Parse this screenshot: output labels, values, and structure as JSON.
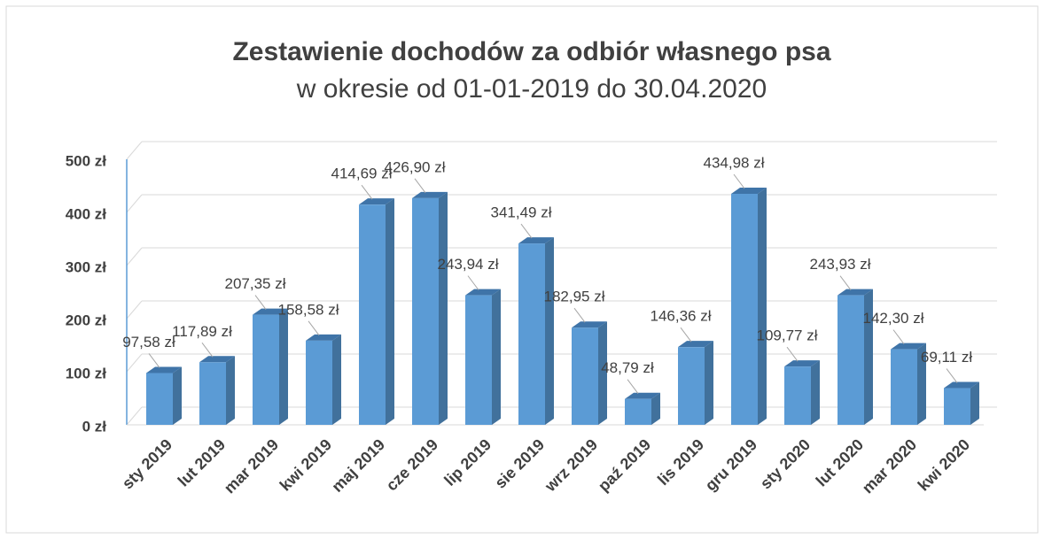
{
  "chart_data": {
    "type": "bar3d",
    "title": "Zestawienie dochodów za odbiór własnego psa",
    "subtitle": "w okresie od 01-01-2019 do 30.04.2020",
    "categories": [
      "sty 2019",
      "lut 2019",
      "mar 2019",
      "kwi 2019",
      "maj 2019",
      "cze 2019",
      "lip 2019",
      "sie 2019",
      "wrz 2019",
      "paź 2019",
      "lis 2019",
      "gru 2019",
      "sty 2020",
      "lut 2020",
      "mar 2020",
      "kwi 2020"
    ],
    "values": [
      97.58,
      117.89,
      207.35,
      158.58,
      414.69,
      426.9,
      243.94,
      341.49,
      182.95,
      48.79,
      146.36,
      434.98,
      109.77,
      243.93,
      142.3,
      69.11
    ],
    "value_labels": [
      "97,58 zł",
      "117,89 zł",
      "207,35 zł",
      "158,58 zł",
      "414,69 zł",
      "426,90 zł",
      "243,94 zł",
      "341,49 zł",
      "182,95 zł",
      "48,79 zł",
      "146,36 zł",
      "434,98 zł",
      "109,77 zł",
      "243,93 zł",
      "142,30 zł",
      "69,11 zł"
    ],
    "color": "#5b9bd5",
    "ylim": [
      0,
      500
    ],
    "yticks": [
      {
        "value": 0,
        "label": "0 zł"
      },
      {
        "value": 100,
        "label": "100 zł"
      },
      {
        "value": 200,
        "label": "200 zł"
      },
      {
        "value": 300,
        "label": "300 zł"
      },
      {
        "value": 400,
        "label": "400 zł"
      },
      {
        "value": 500,
        "label": "500 zł"
      }
    ],
    "grid": true
  }
}
